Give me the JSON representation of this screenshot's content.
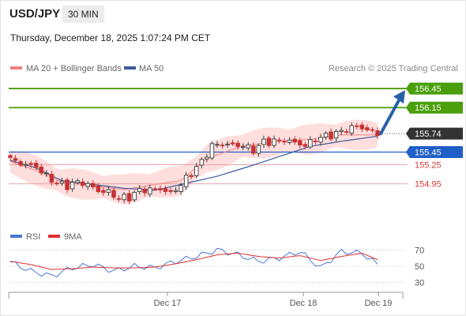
{
  "header": {
    "symbol": "USD/JPY",
    "timeframe": "30 MIN",
    "datetime": "Thursday, December 18, 2025 1:07:24 PM CET"
  },
  "legend": {
    "ma20_bb": "MA 20 + Bollinger Bands",
    "ma50": "MA 50",
    "credit": "Research © 2025 Trading Central",
    "rsi": "RSI",
    "rsi_ma": "9MA"
  },
  "colors": {
    "resistance": "#4a9f0a",
    "support": "#1e5fc8",
    "support_level": "#d63a3a",
    "current": "#333333",
    "arrow": "#2860a8",
    "candle_up": "#3a3a3a",
    "candle_down": "#c83232",
    "ma20": "#f08080",
    "ma50": "#3a5a9a",
    "bollinger": "#ffd6d6",
    "rsi": "#4a78d6",
    "rsi_ma": "#e03030"
  },
  "chart_data": [
    {
      "type": "candlestick",
      "ylim": [
        154.3,
        156.65
      ],
      "x_ticks": [
        "Dec 17",
        "Dec 18",
        "Dec 19"
      ],
      "levels": [
        {
          "label": "156.45",
          "value": 156.45,
          "kind": "resistance"
        },
        {
          "label": "156.15",
          "value": 156.15,
          "kind": "resistance"
        },
        {
          "label": "155.74",
          "value": 155.74,
          "kind": "current"
        },
        {
          "label": "155.45",
          "value": 155.45,
          "kind": "support_strong"
        },
        {
          "label": "155.25",
          "value": 155.25,
          "kind": "support"
        },
        {
          "label": "154.95",
          "value": 154.95,
          "kind": "support"
        }
      ],
      "series_anchors": [
        {
          "name": "MA 20 + Bollinger Bands",
          "x": [
            0,
            5,
            10,
            18,
            22,
            28,
            33,
            38,
            45,
            52,
            58,
            64,
            71
          ],
          "y": [
            155.3,
            155.16,
            154.98,
            154.9,
            154.86,
            154.94,
            155.0,
            155.35,
            155.55,
            155.62,
            155.65,
            155.72,
            155.72
          ]
        },
        {
          "name": "MA 50",
          "x": [
            0,
            5,
            10,
            18,
            22,
            28,
            33,
            40,
            46,
            52,
            58,
            64,
            71
          ],
          "y": [
            155.32,
            155.2,
            155.0,
            154.92,
            154.88,
            154.85,
            154.94,
            155.07,
            155.22,
            155.38,
            155.54,
            155.62,
            155.7
          ]
        }
      ],
      "path_anchors": {
        "x": [
          0,
          2,
          5,
          7,
          9,
          11,
          13,
          15,
          17,
          19,
          21,
          23,
          25,
          27,
          29,
          31,
          33,
          35,
          37,
          39,
          41,
          43,
          45,
          47,
          49,
          51,
          53,
          55,
          57,
          59,
          61,
          63,
          65,
          67,
          69,
          71
        ],
        "y": [
          155.34,
          155.27,
          155.22,
          155.07,
          154.96,
          154.92,
          154.98,
          154.94,
          154.84,
          154.82,
          154.72,
          154.74,
          154.85,
          154.86,
          154.87,
          154.8,
          154.94,
          155.12,
          155.3,
          155.55,
          155.58,
          155.56,
          155.55,
          155.48,
          155.61,
          155.62,
          155.64,
          155.6,
          155.55,
          155.66,
          155.7,
          155.74,
          155.81,
          155.86,
          155.8,
          155.74
        ]
      },
      "n_candles": 72
    },
    {
      "type": "line",
      "ylim": [
        20,
        80
      ],
      "y_ticks": [
        70,
        50,
        30
      ],
      "series_anchors": [
        {
          "name": "RSI",
          "x": [
            0,
            4,
            8,
            12,
            16,
            20,
            24,
            28,
            32,
            36,
            40,
            44,
            48,
            52,
            56,
            60,
            64,
            68,
            71
          ],
          "y": [
            55,
            44,
            38,
            48,
            52,
            44,
            50,
            48,
            56,
            62,
            70,
            64,
            56,
            60,
            68,
            48,
            68,
            66,
            52
          ]
        },
        {
          "name": "9MA",
          "x": [
            0,
            4,
            8,
            12,
            16,
            20,
            24,
            28,
            32,
            36,
            40,
            44,
            48,
            52,
            56,
            60,
            64,
            68,
            71
          ],
          "y": [
            56,
            52,
            46,
            47,
            49,
            48,
            48,
            49,
            53,
            58,
            64,
            66,
            62,
            60,
            63,
            57,
            62,
            66,
            58
          ]
        }
      ]
    }
  ]
}
